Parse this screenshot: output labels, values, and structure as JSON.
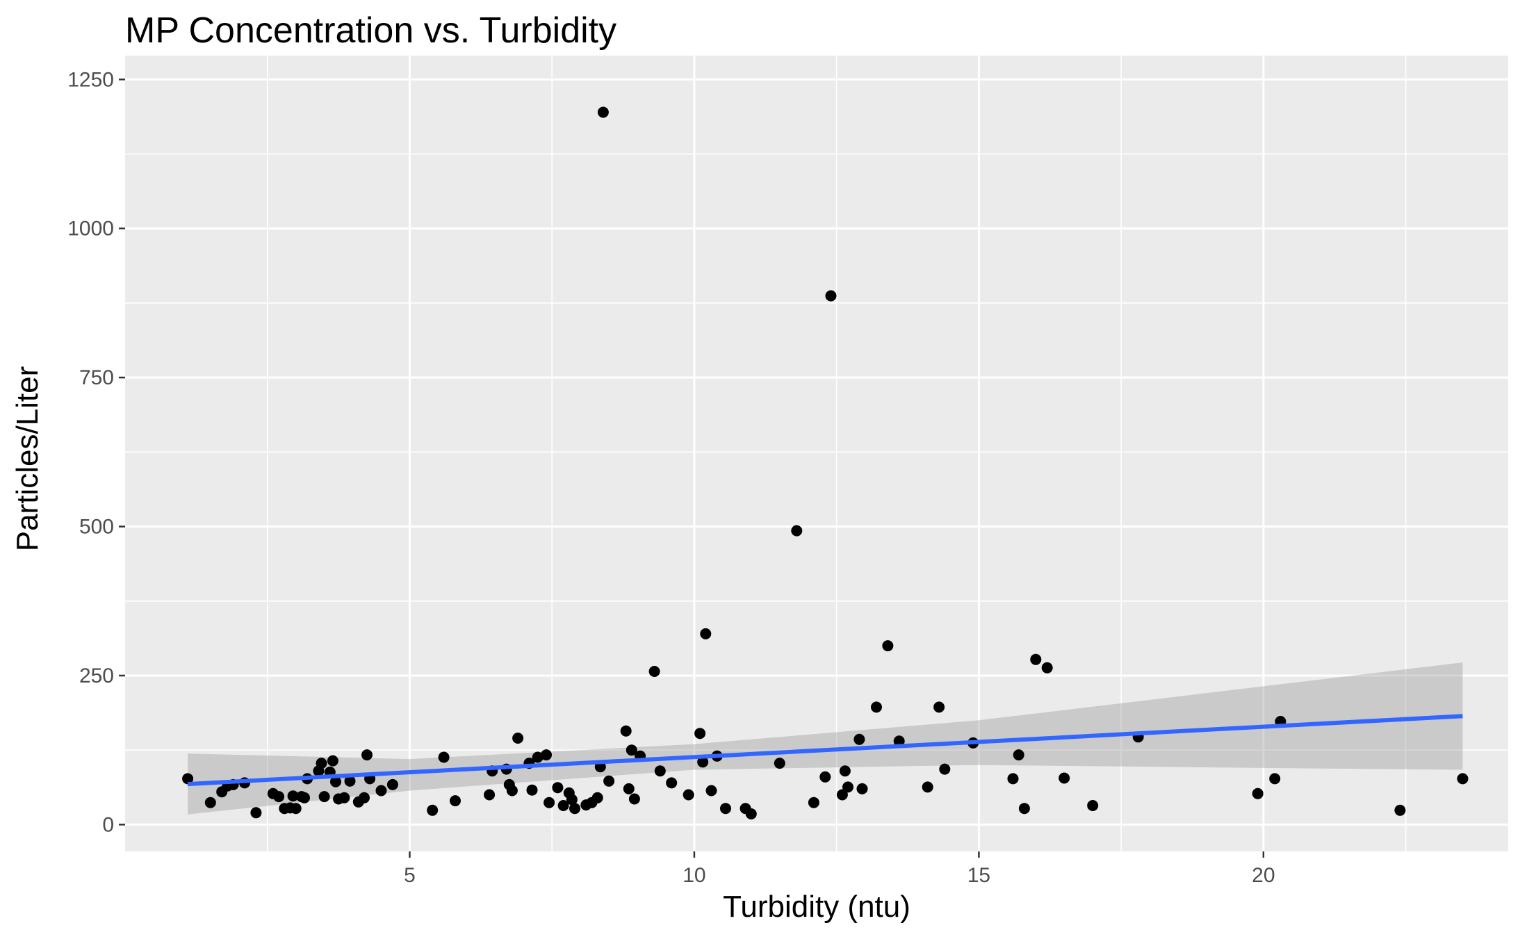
{
  "chart_data": {
    "type": "scatter",
    "title": "MP Concentration vs. Turbidity",
    "xlabel": "Turbidity (ntu)",
    "ylabel": "Particles/Liter",
    "xlim": [
      0,
      24.3
    ],
    "ylim": [
      -45,
      1290
    ],
    "x_ticks": [
      5,
      10,
      15,
      20
    ],
    "y_ticks": [
      0,
      250,
      500,
      750,
      1000,
      1250
    ],
    "grid": true,
    "points": [
      {
        "x": 1.1,
        "y": 77
      },
      {
        "x": 1.5,
        "y": 37
      },
      {
        "x": 1.7,
        "y": 55
      },
      {
        "x": 1.8,
        "y": 65
      },
      {
        "x": 1.9,
        "y": 67
      },
      {
        "x": 2.1,
        "y": 70
      },
      {
        "x": 2.3,
        "y": 20
      },
      {
        "x": 2.6,
        "y": 52
      },
      {
        "x": 2.7,
        "y": 47
      },
      {
        "x": 2.8,
        "y": 27
      },
      {
        "x": 2.9,
        "y": 28
      },
      {
        "x": 2.95,
        "y": 48
      },
      {
        "x": 3.0,
        "y": 27
      },
      {
        "x": 3.1,
        "y": 47
      },
      {
        "x": 3.15,
        "y": 45
      },
      {
        "x": 3.2,
        "y": 77
      },
      {
        "x": 3.4,
        "y": 90
      },
      {
        "x": 3.45,
        "y": 103
      },
      {
        "x": 3.5,
        "y": 47
      },
      {
        "x": 3.6,
        "y": 88
      },
      {
        "x": 3.65,
        "y": 107
      },
      {
        "x": 3.7,
        "y": 72
      },
      {
        "x": 3.75,
        "y": 43
      },
      {
        "x": 3.85,
        "y": 45
      },
      {
        "x": 3.95,
        "y": 73
      },
      {
        "x": 4.1,
        "y": 38
      },
      {
        "x": 4.2,
        "y": 45
      },
      {
        "x": 4.25,
        "y": 117
      },
      {
        "x": 4.3,
        "y": 77
      },
      {
        "x": 4.5,
        "y": 57
      },
      {
        "x": 4.7,
        "y": 67
      },
      {
        "x": 5.4,
        "y": 24
      },
      {
        "x": 5.6,
        "y": 113
      },
      {
        "x": 5.8,
        "y": 40
      },
      {
        "x": 6.4,
        "y": 50
      },
      {
        "x": 6.45,
        "y": 90
      },
      {
        "x": 6.7,
        "y": 93
      },
      {
        "x": 6.75,
        "y": 67
      },
      {
        "x": 6.8,
        "y": 57
      },
      {
        "x": 6.9,
        "y": 145
      },
      {
        "x": 7.1,
        "y": 103
      },
      {
        "x": 7.15,
        "y": 58
      },
      {
        "x": 7.25,
        "y": 113
      },
      {
        "x": 7.4,
        "y": 117
      },
      {
        "x": 7.45,
        "y": 37
      },
      {
        "x": 7.6,
        "y": 62
      },
      {
        "x": 7.7,
        "y": 32
      },
      {
        "x": 7.8,
        "y": 53
      },
      {
        "x": 7.85,
        "y": 42
      },
      {
        "x": 7.9,
        "y": 27
      },
      {
        "x": 8.1,
        "y": 33
      },
      {
        "x": 8.2,
        "y": 37
      },
      {
        "x": 8.3,
        "y": 45
      },
      {
        "x": 8.35,
        "y": 97
      },
      {
        "x": 8.4,
        "y": 1195
      },
      {
        "x": 8.5,
        "y": 73
      },
      {
        "x": 8.8,
        "y": 157
      },
      {
        "x": 8.85,
        "y": 60
      },
      {
        "x": 8.9,
        "y": 125
      },
      {
        "x": 8.95,
        "y": 43
      },
      {
        "x": 9.05,
        "y": 115
      },
      {
        "x": 9.3,
        "y": 257
      },
      {
        "x": 9.4,
        "y": 90
      },
      {
        "x": 9.6,
        "y": 70
      },
      {
        "x": 9.9,
        "y": 50
      },
      {
        "x": 10.1,
        "y": 153
      },
      {
        "x": 10.15,
        "y": 105
      },
      {
        "x": 10.2,
        "y": 320
      },
      {
        "x": 10.3,
        "y": 57
      },
      {
        "x": 10.4,
        "y": 115
      },
      {
        "x": 10.55,
        "y": 27
      },
      {
        "x": 10.9,
        "y": 27
      },
      {
        "x": 11.0,
        "y": 18
      },
      {
        "x": 11.5,
        "y": 103
      },
      {
        "x": 11.8,
        "y": 493
      },
      {
        "x": 12.1,
        "y": 37
      },
      {
        "x": 12.3,
        "y": 80
      },
      {
        "x": 12.4,
        "y": 887
      },
      {
        "x": 12.6,
        "y": 50
      },
      {
        "x": 12.65,
        "y": 90
      },
      {
        "x": 12.7,
        "y": 63
      },
      {
        "x": 12.9,
        "y": 143
      },
      {
        "x": 12.95,
        "y": 60
      },
      {
        "x": 13.2,
        "y": 197
      },
      {
        "x": 13.4,
        "y": 300
      },
      {
        "x": 13.6,
        "y": 140
      },
      {
        "x": 14.1,
        "y": 63
      },
      {
        "x": 14.3,
        "y": 197
      },
      {
        "x": 14.4,
        "y": 93
      },
      {
        "x": 14.9,
        "y": 137
      },
      {
        "x": 15.6,
        "y": 77
      },
      {
        "x": 15.7,
        "y": 117
      },
      {
        "x": 15.8,
        "y": 27
      },
      {
        "x": 16.0,
        "y": 277
      },
      {
        "x": 16.2,
        "y": 263
      },
      {
        "x": 16.5,
        "y": 78
      },
      {
        "x": 17.0,
        "y": 32
      },
      {
        "x": 17.8,
        "y": 147
      },
      {
        "x": 19.9,
        "y": 52
      },
      {
        "x": 20.2,
        "y": 77
      },
      {
        "x": 20.3,
        "y": 173
      },
      {
        "x": 22.4,
        "y": 24
      },
      {
        "x": 23.5,
        "y": 77
      }
    ],
    "fit": {
      "method": "lm",
      "color": "#3366ff",
      "line": [
        {
          "x": 1.1,
          "y": 68
        },
        {
          "x": 23.5,
          "y": 182
        }
      ],
      "ribbon": [
        {
          "x": 1.1,
          "lo": 17,
          "hi": 119
        },
        {
          "x": 5,
          "lo": 57,
          "hi": 110
        },
        {
          "x": 10,
          "lo": 92,
          "hi": 135
        },
        {
          "x": 15,
          "lo": 100,
          "hi": 175
        },
        {
          "x": 20,
          "lo": 95,
          "hi": 232
        },
        {
          "x": 23.5,
          "lo": 92,
          "hi": 272
        }
      ],
      "ribbon_color": "#999999"
    },
    "colors": {
      "panel": "#ebebeb",
      "grid": "#ffffff",
      "points": "#000000",
      "line": "#3366ff"
    }
  }
}
